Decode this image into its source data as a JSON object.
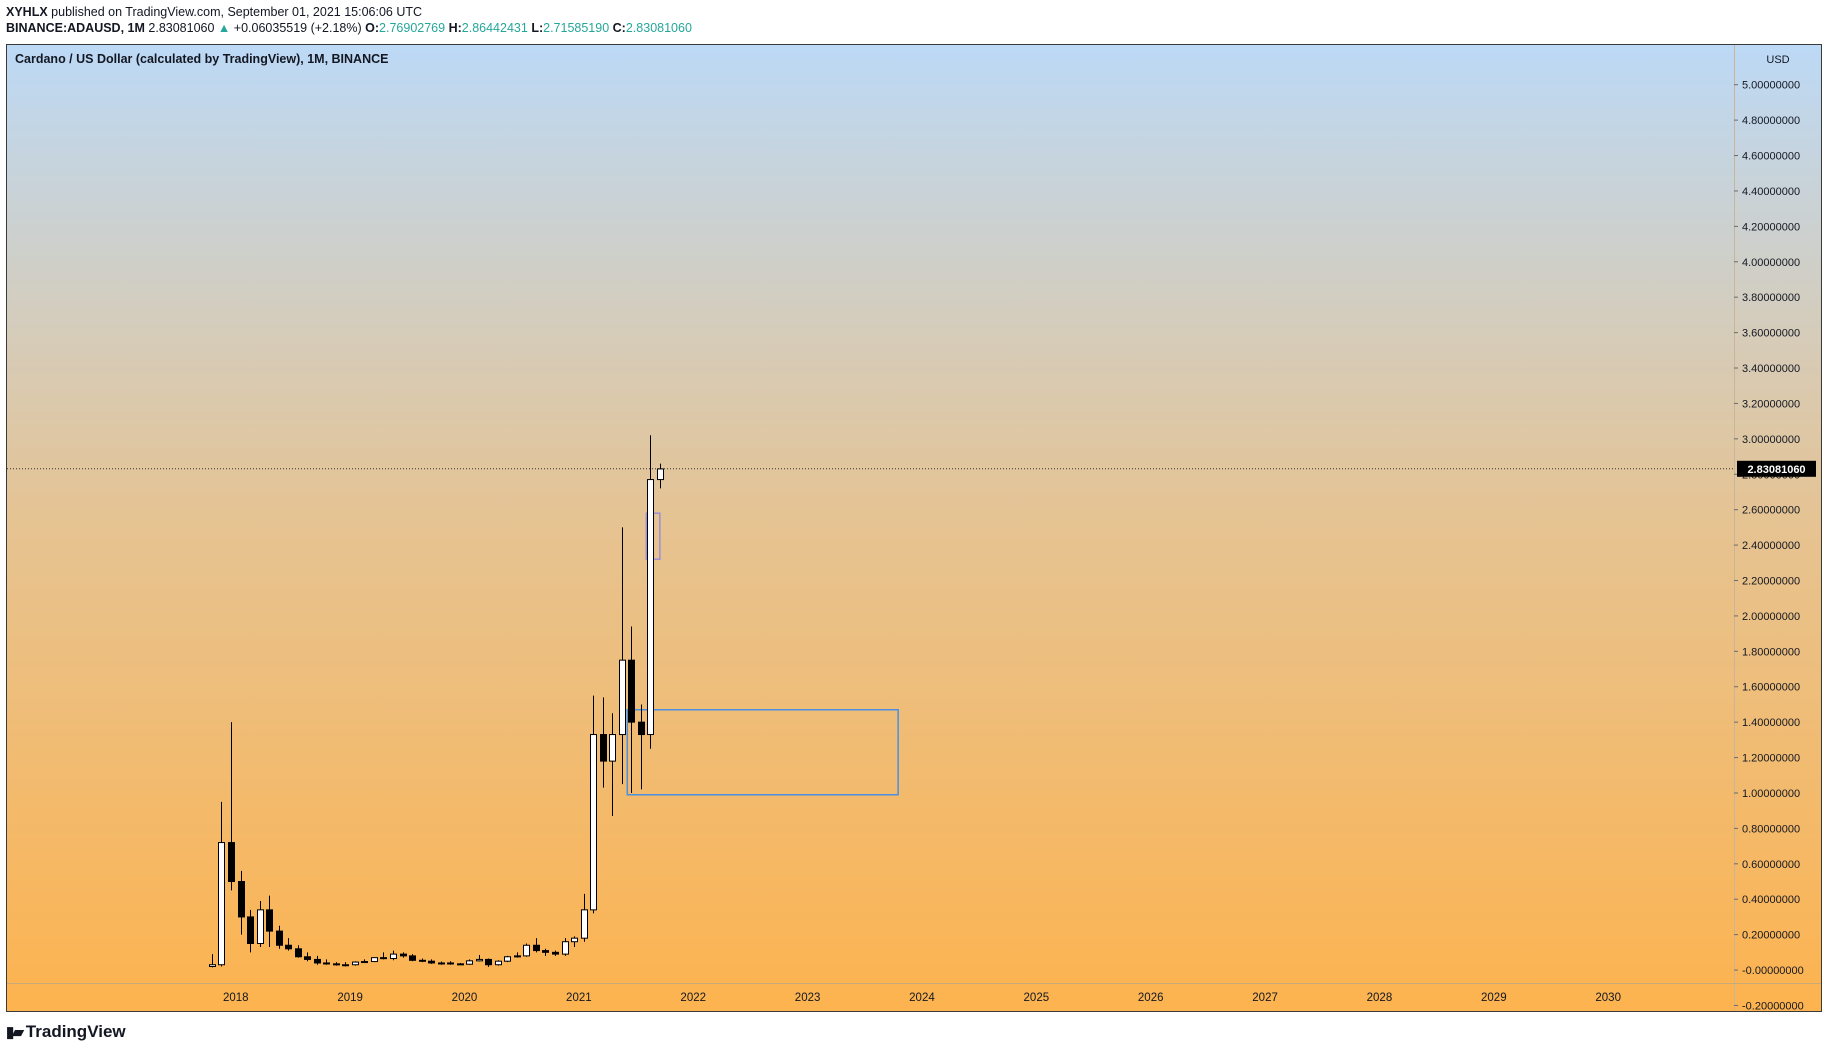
{
  "header": {
    "author": "XYHLX",
    "published_text": "published on TradingView.com, September 01, 2021 15:06:06 UTC",
    "symbol_line": "BINANCE:ADAUSD, 1M",
    "last_price": "2.83081060",
    "change_arrow": "▲",
    "change": "+0.06035519 (+2.18%)",
    "open_label": "O:",
    "open": "2.76902769",
    "high_label": "H:",
    "high": "2.86442431",
    "low_label": "L:",
    "low": "2.71585190",
    "close_label": "C:",
    "close": "2.83081060"
  },
  "footer": {
    "logo_text": "TradingView",
    "logo_icon": "tradingview-logo-icon"
  },
  "colors": {
    "gradient_top": "#bcd9f6",
    "gradient_mid": "#e6c391",
    "gradient_bottom": "#fdb34f",
    "up_body": "#ffffff",
    "down_body": "#000000",
    "wick": "#000000",
    "accent_green": "#26a69a",
    "rect_blue": "#4a90e2",
    "rect_purple": "#9b8fd8"
  },
  "chart_data": {
    "type": "candlestick",
    "title": "Cardano / US Dollar (calculated by TradingView), 1M, BINANCE",
    "currency_label": "USD",
    "ylim": [
      -0.22,
      5.1
    ],
    "xlim": [
      2016.0,
      2031.1
    ],
    "y_ticks": [
      "5.00000000",
      "4.80000000",
      "4.60000000",
      "4.40000000",
      "4.20000000",
      "4.00000000",
      "3.80000000",
      "3.60000000",
      "3.40000000",
      "3.20000000",
      "3.00000000",
      "2.80000000",
      "2.60000000",
      "2.40000000",
      "2.20000000",
      "2.00000000",
      "1.80000000",
      "1.60000000",
      "1.40000000",
      "1.20000000",
      "1.00000000",
      "0.80000000",
      "0.60000000",
      "0.40000000",
      "0.20000000",
      "-0.00000000",
      "-0.20000000"
    ],
    "x_ticks": [
      "2018",
      "2019",
      "2020",
      "2021",
      "2022",
      "2023",
      "2024",
      "2025",
      "2026",
      "2027",
      "2028",
      "2029",
      "2030"
    ],
    "current_price": 2.8308106,
    "current_price_label": "2.83081060",
    "candles": [
      {
        "t": "2017-10",
        "o": 0.02,
        "h": 0.09,
        "l": 0.015,
        "c": 0.03
      },
      {
        "t": "2017-11",
        "o": 0.03,
        "h": 0.95,
        "l": 0.02,
        "c": 0.72
      },
      {
        "t": "2017-12",
        "o": 0.72,
        "h": 1.4,
        "l": 0.45,
        "c": 0.5
      },
      {
        "t": "2018-01",
        "o": 0.5,
        "h": 0.56,
        "l": 0.2,
        "c": 0.3
      },
      {
        "t": "2018-02",
        "o": 0.3,
        "h": 0.34,
        "l": 0.1,
        "c": 0.15
      },
      {
        "t": "2018-03",
        "o": 0.15,
        "h": 0.39,
        "l": 0.13,
        "c": 0.34
      },
      {
        "t": "2018-04",
        "o": 0.34,
        "h": 0.42,
        "l": 0.13,
        "c": 0.22
      },
      {
        "t": "2018-05",
        "o": 0.22,
        "h": 0.25,
        "l": 0.12,
        "c": 0.14
      },
      {
        "t": "2018-06",
        "o": 0.14,
        "h": 0.18,
        "l": 0.11,
        "c": 0.12
      },
      {
        "t": "2018-07",
        "o": 0.12,
        "h": 0.14,
        "l": 0.07,
        "c": 0.075
      },
      {
        "t": "2018-08",
        "o": 0.075,
        "h": 0.1,
        "l": 0.05,
        "c": 0.06
      },
      {
        "t": "2018-09",
        "o": 0.06,
        "h": 0.08,
        "l": 0.03,
        "c": 0.04
      },
      {
        "t": "2018-10",
        "o": 0.04,
        "h": 0.06,
        "l": 0.03,
        "c": 0.035
      },
      {
        "t": "2018-11",
        "o": 0.035,
        "h": 0.045,
        "l": 0.025,
        "c": 0.03
      },
      {
        "t": "2018-12",
        "o": 0.03,
        "h": 0.045,
        "l": 0.02,
        "c": 0.03
      },
      {
        "t": "2019-01",
        "o": 0.03,
        "h": 0.05,
        "l": 0.025,
        "c": 0.045
      },
      {
        "t": "2019-02",
        "o": 0.045,
        "h": 0.06,
        "l": 0.04,
        "c": 0.048
      },
      {
        "t": "2019-03",
        "o": 0.048,
        "h": 0.07,
        "l": 0.045,
        "c": 0.07
      },
      {
        "t": "2019-04",
        "o": 0.07,
        "h": 0.1,
        "l": 0.06,
        "c": 0.065
      },
      {
        "t": "2019-05",
        "o": 0.065,
        "h": 0.11,
        "l": 0.055,
        "c": 0.09
      },
      {
        "t": "2019-06",
        "o": 0.09,
        "h": 0.1,
        "l": 0.07,
        "c": 0.08
      },
      {
        "t": "2019-07",
        "o": 0.08,
        "h": 0.09,
        "l": 0.05,
        "c": 0.055
      },
      {
        "t": "2019-08",
        "o": 0.055,
        "h": 0.065,
        "l": 0.045,
        "c": 0.05
      },
      {
        "t": "2019-09",
        "o": 0.05,
        "h": 0.06,
        "l": 0.035,
        "c": 0.04
      },
      {
        "t": "2019-10",
        "o": 0.04,
        "h": 0.048,
        "l": 0.03,
        "c": 0.04
      },
      {
        "t": "2019-11",
        "o": 0.04,
        "h": 0.05,
        "l": 0.03,
        "c": 0.035
      },
      {
        "t": "2019-12",
        "o": 0.035,
        "h": 0.04,
        "l": 0.03,
        "c": 0.033
      },
      {
        "t": "2020-01",
        "o": 0.033,
        "h": 0.06,
        "l": 0.03,
        "c": 0.052
      },
      {
        "t": "2020-02",
        "o": 0.052,
        "h": 0.085,
        "l": 0.048,
        "c": 0.06
      },
      {
        "t": "2020-03",
        "o": 0.06,
        "h": 0.065,
        "l": 0.018,
        "c": 0.03
      },
      {
        "t": "2020-04",
        "o": 0.03,
        "h": 0.055,
        "l": 0.025,
        "c": 0.05
      },
      {
        "t": "2020-05",
        "o": 0.05,
        "h": 0.08,
        "l": 0.045,
        "c": 0.075
      },
      {
        "t": "2020-06",
        "o": 0.075,
        "h": 0.1,
        "l": 0.07,
        "c": 0.08
      },
      {
        "t": "2020-07",
        "o": 0.08,
        "h": 0.15,
        "l": 0.075,
        "c": 0.14
      },
      {
        "t": "2020-08",
        "o": 0.14,
        "h": 0.18,
        "l": 0.1,
        "c": 0.11
      },
      {
        "t": "2020-09",
        "o": 0.11,
        "h": 0.12,
        "l": 0.08,
        "c": 0.1
      },
      {
        "t": "2020-10",
        "o": 0.1,
        "h": 0.11,
        "l": 0.08,
        "c": 0.09
      },
      {
        "t": "2020-11",
        "o": 0.09,
        "h": 0.18,
        "l": 0.08,
        "c": 0.16
      },
      {
        "t": "2020-12",
        "o": 0.16,
        "h": 0.19,
        "l": 0.13,
        "c": 0.18
      },
      {
        "t": "2021-01",
        "o": 0.18,
        "h": 0.43,
        "l": 0.16,
        "c": 0.34
      },
      {
        "t": "2021-02",
        "o": 0.34,
        "h": 1.55,
        "l": 0.32,
        "c": 1.33
      },
      {
        "t": "2021-03",
        "o": 1.33,
        "h": 1.54,
        "l": 1.03,
        "c": 1.18
      },
      {
        "t": "2021-04",
        "o": 1.18,
        "h": 1.45,
        "l": 0.87,
        "c": 1.33
      },
      {
        "t": "2021-05",
        "o": 1.33,
        "h": 2.5,
        "l": 1.05,
        "c": 1.75
      },
      {
        "t": "2021-06",
        "o": 1.75,
        "h": 1.94,
        "l": 1.0,
        "c": 1.4
      },
      {
        "t": "2021-07",
        "o": 1.4,
        "h": 1.5,
        "l": 1.02,
        "c": 1.33
      },
      {
        "t": "2021-08",
        "o": 1.33,
        "h": 3.02,
        "l": 1.25,
        "c": 2.77
      },
      {
        "t": "2021-09",
        "o": 2.77,
        "h": 2.86,
        "l": 2.72,
        "c": 2.83
      }
    ],
    "rectangles": [
      {
        "name": "demand-zone-rectangle",
        "x0": "2021-06",
        "x1": "2023-10",
        "y0": 0.99,
        "y1": 1.47,
        "color": "#4a90e2"
      },
      {
        "name": "small-zone-rectangle",
        "x0": "2021-08",
        "x1": "2021-09",
        "y0": 2.32,
        "y1": 2.58,
        "color": "#9b8fd8"
      }
    ]
  }
}
